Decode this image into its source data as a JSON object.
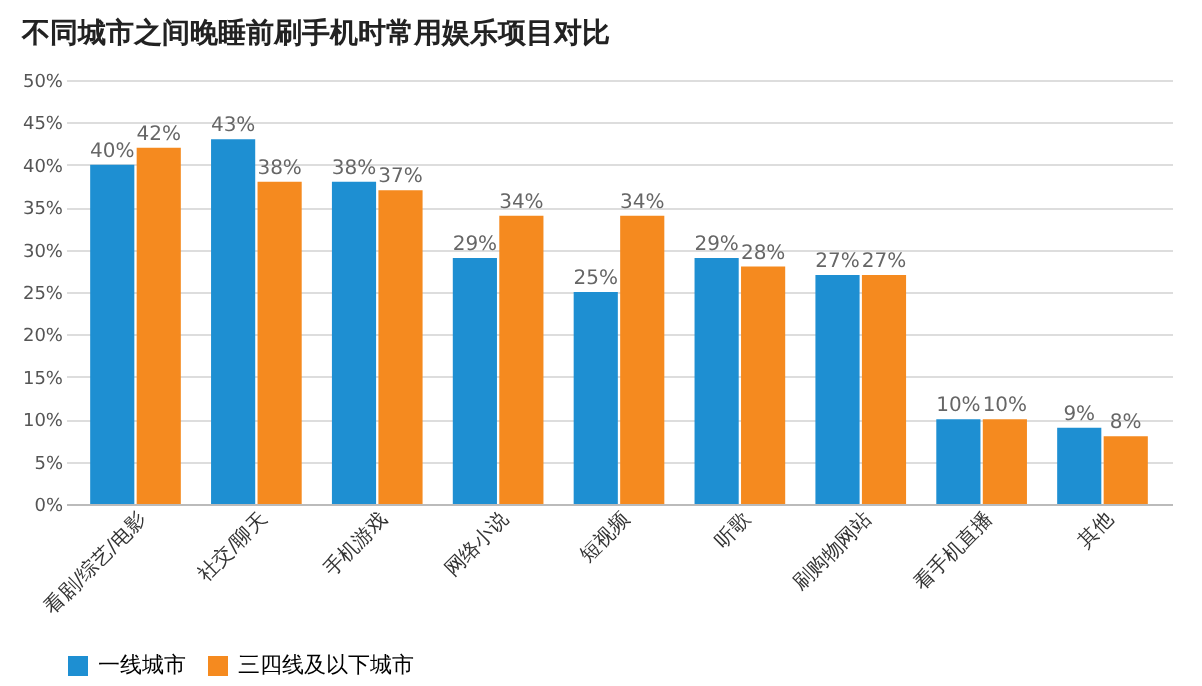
{
  "chart_data": {
    "type": "bar",
    "title": "不同城市之间晚睡前刷手机时常用娱乐项目对比",
    "categories": [
      "看剧/综艺/电影",
      "社交/聊天",
      "手机游戏",
      "网络小说",
      "短视频",
      "听歌",
      "刷购物网站",
      "看手机直播",
      "其他"
    ],
    "series": [
      {
        "name": "一线城市",
        "color": "#1e8fd2",
        "values": [
          40,
          43,
          38,
          29,
          25,
          29,
          27,
          10,
          9
        ]
      },
      {
        "name": "三四线及以下城市",
        "color": "#f58a1f",
        "values": [
          42,
          38,
          37,
          34,
          34,
          28,
          27,
          10,
          8
        ]
      }
    ],
    "ylim": [
      0,
      50
    ],
    "yticks": [
      {
        "value": 0,
        "label": "0%"
      },
      {
        "value": 5,
        "label": "5%"
      },
      {
        "value": 10,
        "label": "10%"
      },
      {
        "value": 15,
        "label": "15%"
      },
      {
        "value": 20,
        "label": "20%"
      },
      {
        "value": 25,
        "label": "25%"
      },
      {
        "value": 30,
        "label": "30%"
      },
      {
        "value": 35,
        "label": "35%"
      },
      {
        "value": 40,
        "label": "40%"
      },
      {
        "value": 45,
        "label": "45%"
      },
      {
        "value": 50,
        "label": "50%"
      }
    ],
    "value_labels": [
      [
        "40%",
        "43%",
        "38%",
        "29%",
        "25%",
        "29%",
        "27%",
        "10%",
        "9%"
      ],
      [
        "42%",
        "38%",
        "37%",
        "34%",
        "34%",
        "28%",
        "27%",
        "10%",
        "8%"
      ]
    ],
    "grid": "y",
    "legend": "bottom"
  }
}
